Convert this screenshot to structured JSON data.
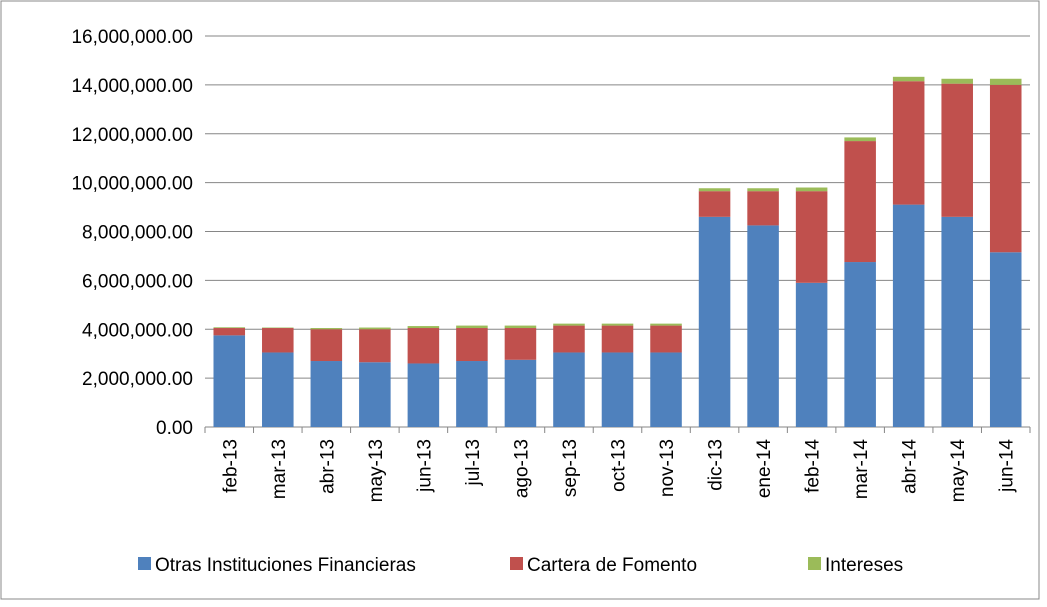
{
  "chart_data": {
    "type": "stacked_bar",
    "categories": [
      "feb-13",
      "mar-13",
      "abr-13",
      "may-13",
      "jun-13",
      "jul-13",
      "ago-13",
      "sep-13",
      "oct-13",
      "nov-13",
      "dic-13",
      "ene-14",
      "feb-14",
      "mar-14",
      "abr-14",
      "may-14",
      "jun-14"
    ],
    "series": [
      {
        "name": "Otras Instituciones Financieras",
        "color": "#4f81bd",
        "values": [
          3750000,
          3050000,
          2700000,
          2650000,
          2600000,
          2700000,
          2750000,
          3050000,
          3050000,
          3050000,
          8600000,
          8250000,
          5900000,
          6750000,
          9100000,
          8600000,
          7150000
        ]
      },
      {
        "name": "Cartera de Fomento",
        "color": "#c0504d",
        "values": [
          300000,
          1000000,
          1300000,
          1350000,
          1450000,
          1350000,
          1300000,
          1100000,
          1100000,
          1100000,
          1050000,
          1400000,
          3750000,
          4950000,
          5050000,
          5450000,
          6850000
        ]
      },
      {
        "name": "Intereses",
        "color": "#9bbb59",
        "values": [
          30000,
          20000,
          50000,
          70000,
          80000,
          100000,
          100000,
          80000,
          80000,
          80000,
          120000,
          120000,
          150000,
          150000,
          180000,
          200000,
          250000
        ]
      }
    ],
    "ylim": [
      0,
      16000000
    ],
    "yticks": [
      {
        "value": 0,
        "label": "0.00"
      },
      {
        "value": 2000000,
        "label": "2,000,000.00"
      },
      {
        "value": 4000000,
        "label": "4,000,000.00"
      },
      {
        "value": 6000000,
        "label": "6,000,000.00"
      },
      {
        "value": 8000000,
        "label": "8,000,000.00"
      },
      {
        "value": 10000000,
        "label": "10,000,000.00"
      },
      {
        "value": 12000000,
        "label": "12,000,000.00"
      },
      {
        "value": 14000000,
        "label": "14,000,000.00"
      },
      {
        "value": 16000000,
        "label": "16,000,000.00"
      }
    ],
    "grid": true,
    "legend": "bottom"
  }
}
